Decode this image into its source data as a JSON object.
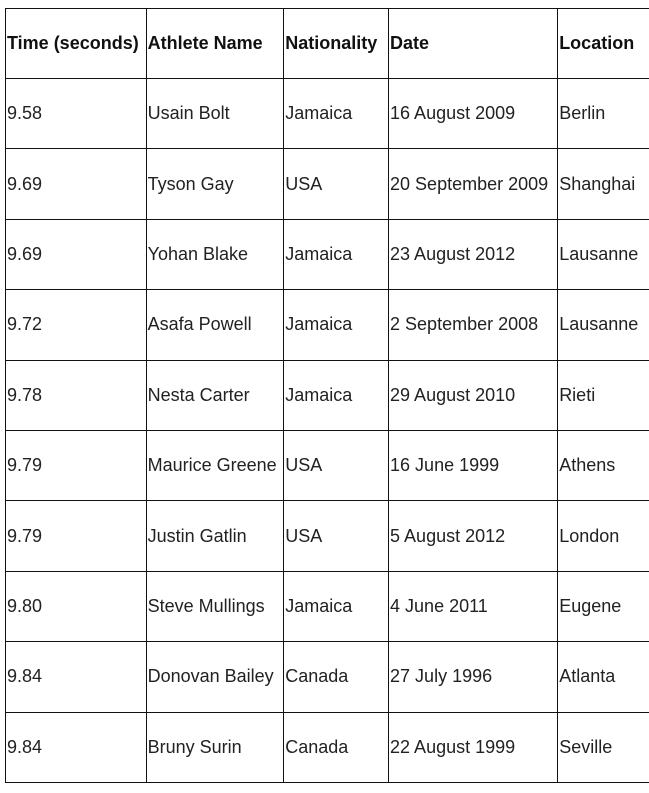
{
  "table": {
    "headers": [
      "Time (seconds)",
      "Athlete Name",
      "Nationality",
      "Date",
      "Location"
    ],
    "rows": [
      [
        "9.58",
        "Usain Bolt",
        "Jamaica",
        "16 August 2009",
        "Berlin"
      ],
      [
        "9.69",
        "Tyson Gay",
        "USA",
        "20 September 2009",
        "Shanghai"
      ],
      [
        "9.69",
        "Yohan Blake",
        "Jamaica",
        "23 August 2012",
        "Lausanne"
      ],
      [
        "9.72",
        "Asafa Powell",
        "Jamaica",
        "2 September 2008",
        "Lausanne"
      ],
      [
        "9.78",
        "Nesta Carter",
        "Jamaica",
        "29 August 2010",
        "Rieti"
      ],
      [
        "9.79",
        "Maurice Greene",
        "USA",
        "16 June 1999",
        "Athens"
      ],
      [
        "9.79",
        "Justin Gatlin",
        "USA",
        "5 August 2012",
        "London"
      ],
      [
        "9.80",
        "Steve Mullings",
        "Jamaica",
        "4 June 2011",
        "Eugene"
      ],
      [
        "9.84",
        "Donovan Bailey",
        "Canada",
        "27 July 1996",
        "Atlanta"
      ],
      [
        "9.84",
        "Bruny Surin",
        "Canada",
        "22 August 1999",
        "Seville"
      ]
    ]
  }
}
